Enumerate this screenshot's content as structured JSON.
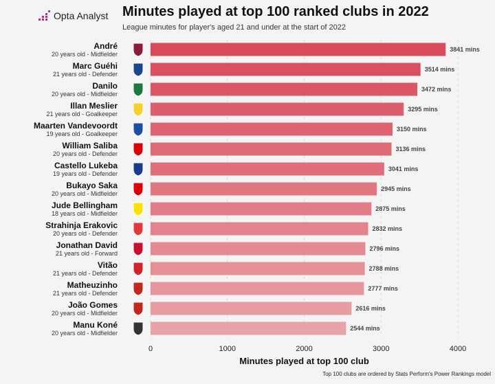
{
  "brand": "Opta Analyst",
  "chart_data": {
    "type": "bar",
    "orientation": "horizontal",
    "title": "Minutes played at top 100 ranked clubs in 2022",
    "subtitle": "League minutes for player's aged 21 and under at the start of 2022",
    "xlabel": "Minutes played at top 100 club",
    "footnote": "Top 100 clubs are ordered by Stats Perform's Power Rankings model",
    "xlim": [
      0,
      4000
    ],
    "xticks": [
      "0",
      "1000",
      "2000",
      "3000",
      "4000"
    ],
    "grid": true,
    "value_suffix": " mins",
    "colors": {
      "max": "#d94a5a",
      "min": "#e8a3a8"
    },
    "players": [
      {
        "name": "André",
        "info": "20 years old - Midfielder",
        "value": 3841,
        "club_icon": "fluminense-crest-icon",
        "club_color": "#8b1d3a"
      },
      {
        "name": "Marc Guéhi",
        "info": "21 years old - Defender",
        "value": 3514,
        "club_icon": "crystal-palace-crest-icon",
        "club_color": "#1b458f"
      },
      {
        "name": "Danilo",
        "info": "20 years old - Midfielder",
        "value": 3472,
        "club_icon": "palmeiras-crest-icon",
        "club_color": "#1e7a3c"
      },
      {
        "name": "Illan Meslier",
        "info": "21 years old - Goalkeeper",
        "value": 3295,
        "club_icon": "leeds-crest-icon",
        "club_color": "#f5d130"
      },
      {
        "name": "Maarten Vandevoordt",
        "info": "19 years old - Goalkeeper",
        "value": 3150,
        "club_icon": "genk-crest-icon",
        "club_color": "#1d4fa0"
      },
      {
        "name": "William Saliba",
        "info": "20 years old - Defender",
        "value": 3136,
        "club_icon": "arsenal-crest-icon",
        "club_color": "#db0007"
      },
      {
        "name": "Castello Lukeba",
        "info": "19 years old - Defender",
        "value": 3041,
        "club_icon": "lyon-crest-icon",
        "club_color": "#1a3c8c"
      },
      {
        "name": "Bukayo Saka",
        "info": "20 years old - Midfielder",
        "value": 2945,
        "club_icon": "arsenal-crest-icon",
        "club_color": "#db0007"
      },
      {
        "name": "Jude Bellingham",
        "info": "18 years old - Midfielder",
        "value": 2875,
        "club_icon": "dortmund-crest-icon",
        "club_color": "#fde100"
      },
      {
        "name": "Strahinja Erakovic",
        "info": "20 years old - Defender",
        "value": 2832,
        "club_icon": "red-star-crest-icon",
        "club_color": "#e03a3e"
      },
      {
        "name": "Jonathan David",
        "info": "21 years old - Forward",
        "value": 2796,
        "club_icon": "lille-crest-icon",
        "club_color": "#c8102e"
      },
      {
        "name": "Vitão",
        "info": "21 years old - Defender",
        "value": 2788,
        "club_icon": "internacional-crest-icon",
        "club_color": "#d2232a"
      },
      {
        "name": "Matheuzinho",
        "info": "21 years old - Defender",
        "value": 2777,
        "club_icon": "flamengo-crest-icon",
        "club_color": "#c3281e"
      },
      {
        "name": "João Gomes",
        "info": "20 years old - Midfielder",
        "value": 2616,
        "club_icon": "flamengo-crest-icon",
        "club_color": "#c3281e"
      },
      {
        "name": "Manu Koné",
        "info": "20 years old - Midfielder",
        "value": 2544,
        "club_icon": "gladbach-crest-icon",
        "club_color": "#333333"
      }
    ]
  }
}
